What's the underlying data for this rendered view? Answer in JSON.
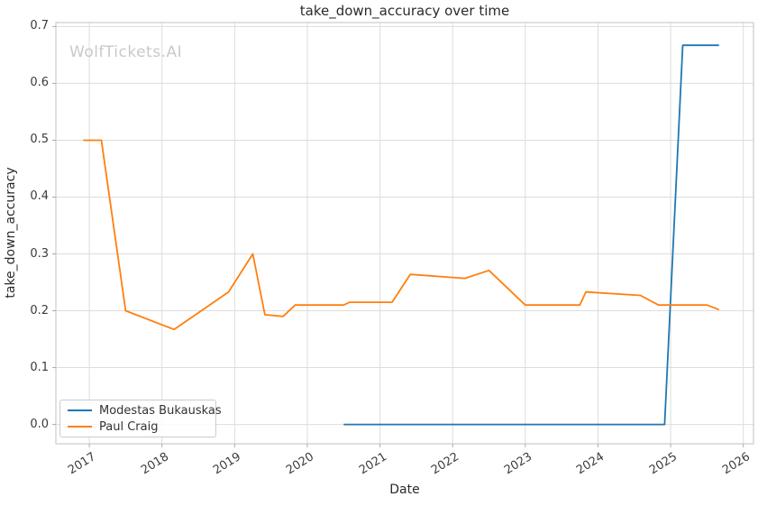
{
  "watermark": "WolfTickets.AI",
  "chart_data": {
    "type": "line",
    "title": "take_down_accuracy over time",
    "xlabel": "Date",
    "ylabel": "take_down_accuracy",
    "grid": true,
    "legend_position": "lower left",
    "x_ticks": [
      2017,
      2018,
      2019,
      2020,
      2021,
      2022,
      2023,
      2024,
      2025,
      2026
    ],
    "y_ticks": [
      0.0,
      0.1,
      0.2,
      0.3,
      0.4,
      0.5,
      0.6,
      0.7
    ],
    "xlim": [
      2016.54,
      2026.14
    ],
    "ylim": [
      -0.034,
      0.707
    ],
    "colors": {
      "grid": "#dddddd",
      "spine": "#cccccc",
      "tick_mark": "#aaaaaa",
      "tick_text": "#3b3b3b",
      "title_text": "#2b2b2b"
    },
    "series": [
      {
        "name": "Modestas Bukauskas",
        "color": "#1f77b4",
        "points": [
          [
            "2020-07",
            0.0
          ],
          [
            "2024-12",
            0.0
          ],
          [
            "2025-03",
            0.667
          ],
          [
            "2025-09",
            0.667
          ]
        ]
      },
      {
        "name": "Paul Craig",
        "color": "#ff7f0e",
        "points": [
          [
            "2016-12",
            0.5
          ],
          [
            "2017-03",
            0.5
          ],
          [
            "2017-07",
            0.2
          ],
          [
            "2018-03",
            0.167
          ],
          [
            "2018-12",
            0.233
          ],
          [
            "2019-04",
            0.3
          ],
          [
            "2019-06",
            0.193
          ],
          [
            "2019-09",
            0.19
          ],
          [
            "2019-11",
            0.21
          ],
          [
            "2020-07",
            0.21
          ],
          [
            "2020-08",
            0.215
          ],
          [
            "2021-03",
            0.215
          ],
          [
            "2021-06",
            0.264
          ],
          [
            "2022-03",
            0.257
          ],
          [
            "2022-07",
            0.271
          ],
          [
            "2023-01",
            0.21
          ],
          [
            "2023-10",
            0.21
          ],
          [
            "2023-11",
            0.233
          ],
          [
            "2024-08",
            0.227
          ],
          [
            "2024-11",
            0.21
          ],
          [
            "2025-07",
            0.21
          ],
          [
            "2025-09",
            0.202
          ]
        ]
      }
    ]
  }
}
